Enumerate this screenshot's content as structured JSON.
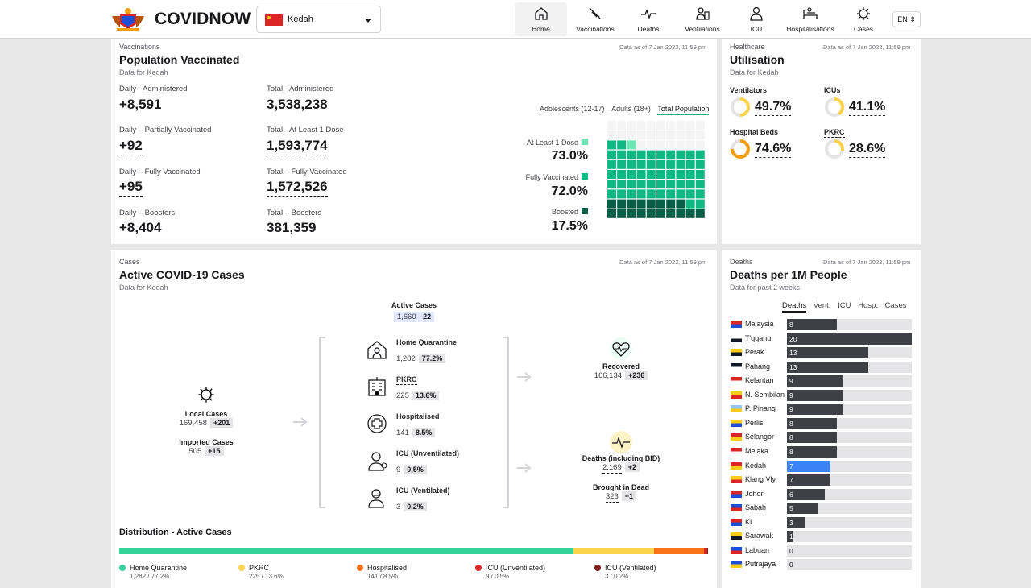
{
  "header": {
    "brand": "COVIDNOW",
    "state": "Kedah",
    "lang": "EN ⇕",
    "nav": [
      {
        "label": "Home",
        "icon": "home-icon"
      },
      {
        "label": "Vaccinations",
        "icon": "syringe-icon"
      },
      {
        "label": "Deaths",
        "icon": "pulse-icon"
      },
      {
        "label": "Ventilations",
        "icon": "ventilator-icon"
      },
      {
        "label": "ICU",
        "icon": "doctor-icon"
      },
      {
        "label": "Hospitalisations",
        "icon": "bed-icon"
      },
      {
        "label": "Cases",
        "icon": "virus-icon"
      }
    ]
  },
  "vacc": {
    "eyebrow": "Vaccinations",
    "title": "Population Vaccinated",
    "sub": "Data for Kedah",
    "asof": "Data as of 7 Jan 2022, 11:59 pm",
    "stats": [
      {
        "label": "Daily - Administered",
        "value": "+8,591"
      },
      {
        "label": "Total - Administered",
        "value": "3,538,238"
      },
      {
        "label": "Daily – Partially Vaccinated",
        "value": "+92"
      },
      {
        "label": "Total - At Least 1 Dose",
        "value": "1,593,774"
      },
      {
        "label": "Daily – Fully Vaccinated",
        "value": "+95"
      },
      {
        "label": "Total – Fully Vaccinated",
        "value": "1,572,526"
      },
      {
        "label": "Daily – Boosters",
        "value": "+8,404"
      },
      {
        "label": "Total – Boosters",
        "value": "381,359"
      }
    ],
    "tabs": [
      "Adolescents (12-17)",
      "Adults (18+)",
      "Total Population"
    ],
    "rates": [
      {
        "label": "At Least 1 Dose",
        "value": "73.0%",
        "color": "#6ee7b7",
        "pct": 73.0
      },
      {
        "label": "Fully Vaccinated",
        "value": "72.0%",
        "color": "#10b981",
        "pct": 72.0
      },
      {
        "label": "Boosted",
        "value": "17.5%",
        "color": "#065f46",
        "pct": 17.5
      }
    ]
  },
  "util": {
    "eyebrow": "Healthcare",
    "title": "Utilisation",
    "sub": "Data for Kedah",
    "asof": "Data as of 7 Jan 2022, 11:59 pm",
    "items": [
      {
        "label": "Ventilators",
        "value": "49.7%",
        "pct": 49.7,
        "color": "#fcd34d"
      },
      {
        "label": "ICUs",
        "value": "41.1%",
        "pct": 41.1,
        "color": "#fcd34d"
      },
      {
        "label": "Hospital Beds",
        "value": "74.6%",
        "pct": 74.6,
        "color": "#f59e0b"
      },
      {
        "label": "PKRC",
        "value": "28.6%",
        "pct": 28.6,
        "color": "#fcd34d"
      }
    ]
  },
  "cases": {
    "eyebrow": "Cases",
    "title": "Active COVID-19 Cases",
    "sub": "Data for Kedah",
    "asof": "Data as of 7 Jan 2022, 11:59 pm",
    "active_label": "Active Cases",
    "active_value": "1,660",
    "active_delta": "-22",
    "local_label": "Local Cases",
    "local_value": "169,458",
    "local_delta": "+201",
    "imported_label": "Imported Cases",
    "imported_value": "505",
    "imported_delta": "+15",
    "breakdown": [
      {
        "label": "Home Quarantine",
        "value": "1,282",
        "pct": "77.2%",
        "icon": "house-icon"
      },
      {
        "label": "PKRC",
        "value": "225",
        "pct": "13.6%",
        "icon": "building-icon"
      },
      {
        "label": "Hospitalised",
        "value": "141",
        "pct": "8.5%",
        "icon": "hospital-cross-icon"
      },
      {
        "label": "ICU (Unventilated)",
        "value": "9",
        "pct": "0.5%",
        "icon": "doctor-icon"
      },
      {
        "label": "ICU (Ventilated)",
        "value": "3",
        "pct": "0.2%",
        "icon": "ventilated-patient-icon"
      }
    ],
    "recovered_label": "Recovered",
    "recovered_value": "166,134",
    "recovered_delta": "+236",
    "deaths_label": "Deaths (including BID)",
    "deaths_value": "2,169",
    "deaths_delta": "+2",
    "bid_label": "Brought in Dead",
    "bid_value": "323",
    "bid_delta": "+1",
    "dist_title": "Distribution - Active Cases",
    "dist": [
      {
        "label": "Home Quarantine",
        "value": "1,282 / 77.2%",
        "pct": 77.2,
        "color": "#34d399"
      },
      {
        "label": "PKRC",
        "value": "225 / 13.6%",
        "pct": 13.6,
        "color": "#fcd34d"
      },
      {
        "label": "Hospitalised",
        "value": "141 / 8.5%",
        "pct": 8.5,
        "color": "#f97316"
      },
      {
        "label": "ICU (Unventilated)",
        "value": "9 / 0.5%",
        "pct": 0.5,
        "color": "#dc2626"
      },
      {
        "label": "ICU (Ventilated)",
        "value": "3 / 0.2%",
        "pct": 0.2,
        "color": "#7f1d1d"
      }
    ]
  },
  "deaths": {
    "eyebrow": "Deaths",
    "title": "Deaths per 1M People",
    "sub": "Data for past 2 weeks",
    "asof": "Data as of 7 Jan 2022, 11:59 pm",
    "tabs": [
      "Deaths",
      "Vent.",
      "ICU",
      "Hosp.",
      "Cases"
    ],
    "max": 20,
    "rows": [
      {
        "name": "Malaysia",
        "value": 8
      },
      {
        "name": "T'gganu",
        "value": 20
      },
      {
        "name": "Perak",
        "value": 13
      },
      {
        "name": "Pahang",
        "value": 13
      },
      {
        "name": "Kelantan",
        "value": 9
      },
      {
        "name": "N. Sembilan",
        "value": 9
      },
      {
        "name": "P. Pinang",
        "value": 9
      },
      {
        "name": "Perlis",
        "value": 8
      },
      {
        "name": "Selangor",
        "value": 8
      },
      {
        "name": "Melaka",
        "value": 8
      },
      {
        "name": "Kedah",
        "value": 7
      },
      {
        "name": "Klang Vly.",
        "value": 7
      },
      {
        "name": "Johor",
        "value": 6
      },
      {
        "name": "Sabah",
        "value": 5
      },
      {
        "name": "KL",
        "value": 3
      },
      {
        "name": "Sarawak",
        "value": 1
      },
      {
        "name": "Labuan",
        "value": 0
      },
      {
        "name": "Putrajaya",
        "value": 0
      }
    ]
  }
}
